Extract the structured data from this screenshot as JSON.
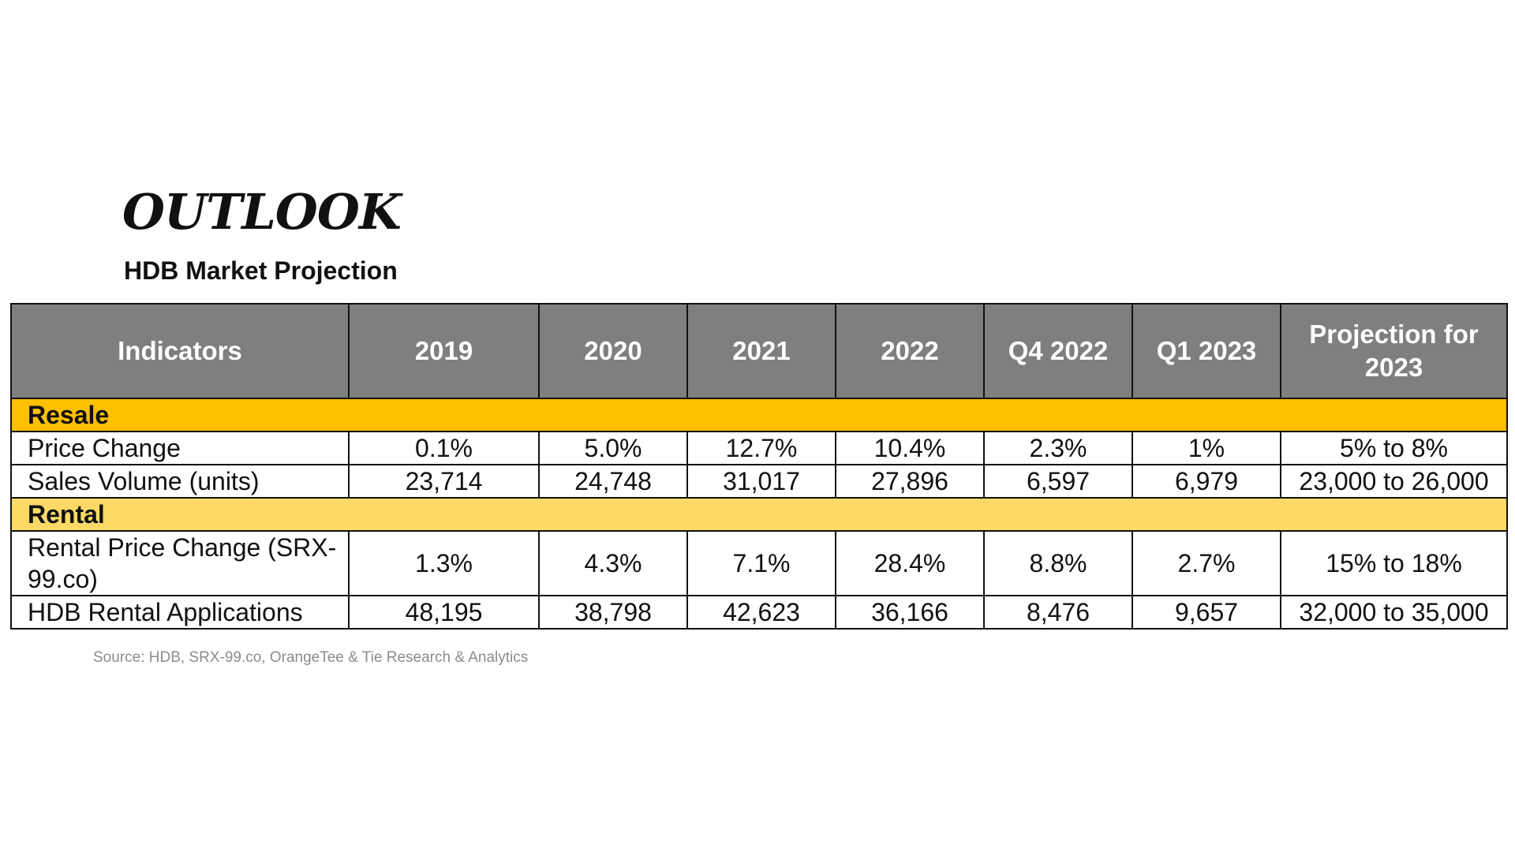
{
  "title": "OUTLOOK",
  "subtitle": "HDB Market Projection",
  "table": {
    "headers": [
      "Indicators",
      "2019",
      "2020",
      "2021",
      "2022",
      "Q4 2022",
      "Q1 2023",
      "Projection for 2023"
    ],
    "sections": [
      {
        "label": "Resale",
        "rows": [
          {
            "indicator": "Price Change",
            "values": [
              "0.1%",
              "5.0%",
              "12.7%",
              "10.4%",
              "2.3%",
              "1%",
              "5% to 8%"
            ]
          },
          {
            "indicator": "Sales Volume (units)",
            "values": [
              "23,714",
              "24,748",
              "31,017",
              "27,896",
              "6,597",
              "6,979",
              "23,000 to 26,000"
            ]
          }
        ]
      },
      {
        "label": "Rental",
        "rows": [
          {
            "indicator": "Rental Price Change (SRX-99.co)",
            "values": [
              "1.3%",
              "4.3%",
              "7.1%",
              "28.4%",
              "8.8%",
              "2.7%",
              "15% to 18%"
            ]
          },
          {
            "indicator": "HDB Rental Applications",
            "values": [
              "48,195",
              "38,798",
              "42,623",
              "36,166",
              "8,476",
              "9,657",
              "32,000 to 35,000"
            ]
          }
        ]
      }
    ]
  },
  "source": "Source: HDB, SRX-99.co, OrangeTee & Tie Research & Analytics",
  "colors": {
    "header_bg": "#7f7f7f",
    "resale_band": "#ffc000",
    "rental_band": "#ffd966"
  }
}
